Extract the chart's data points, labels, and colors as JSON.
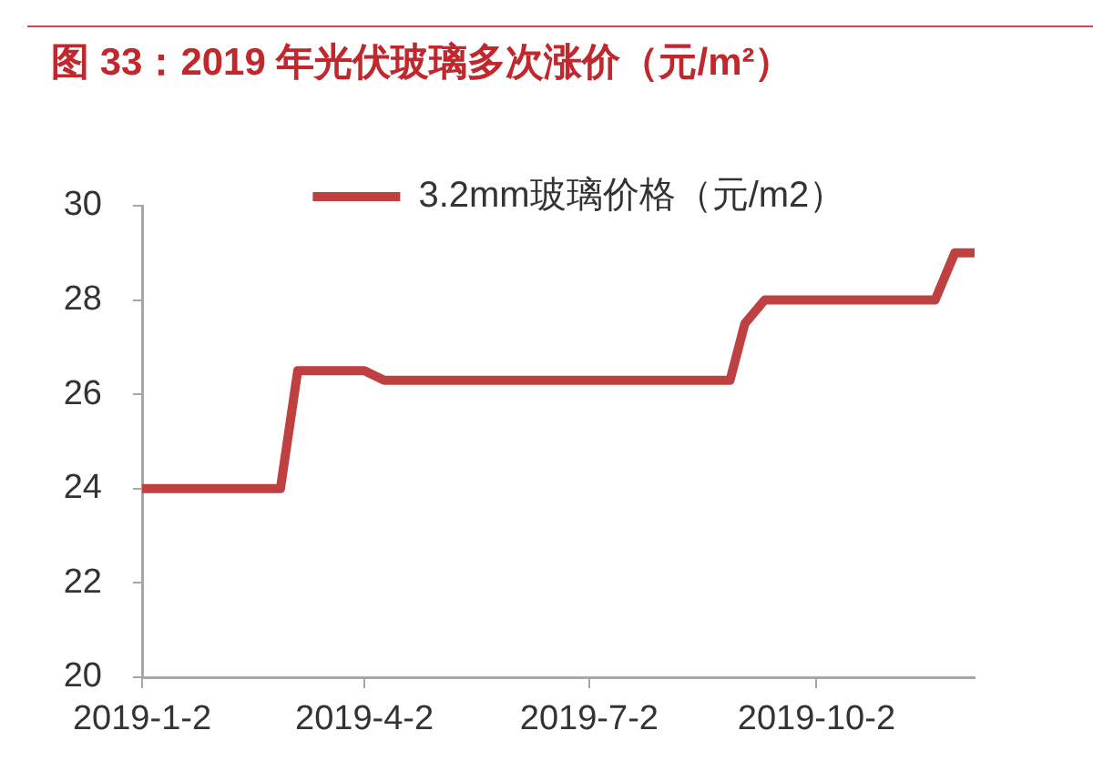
{
  "chart_data": {
    "type": "line",
    "title": "图 33：2019 年光伏玻璃多次涨价（元/m²）",
    "x": [
      "2019-01-02",
      "2019-02-27",
      "2019-03-06",
      "2019-04-02",
      "2019-04-10",
      "2019-08-28",
      "2019-09-03",
      "2019-09-11",
      "2019-11-19",
      "2019-11-27",
      "2019-12-05"
    ],
    "series": [
      {
        "name": "3.2mm玻璃价格（元/m2）",
        "color": "#bf4040",
        "values": [
          24,
          24,
          26.5,
          26.5,
          26.3,
          26.3,
          27.5,
          28,
          28,
          29,
          29
        ]
      }
    ],
    "xlim": [
      "2019-01-02",
      "2019-12-05"
    ],
    "xticks": [
      {
        "value": "2019-01-02",
        "label": "2019-1-2"
      },
      {
        "value": "2019-04-02",
        "label": "2019-4-2"
      },
      {
        "value": "2019-07-02",
        "label": "2019-7-2"
      },
      {
        "value": "2019-10-02",
        "label": "2019-10-2"
      }
    ],
    "ylim": [
      20,
      30
    ],
    "yticks": [
      20,
      22,
      24,
      26,
      28,
      30
    ],
    "grid": false,
    "legend": "top",
    "marker": "none",
    "line_style": "solid"
  }
}
